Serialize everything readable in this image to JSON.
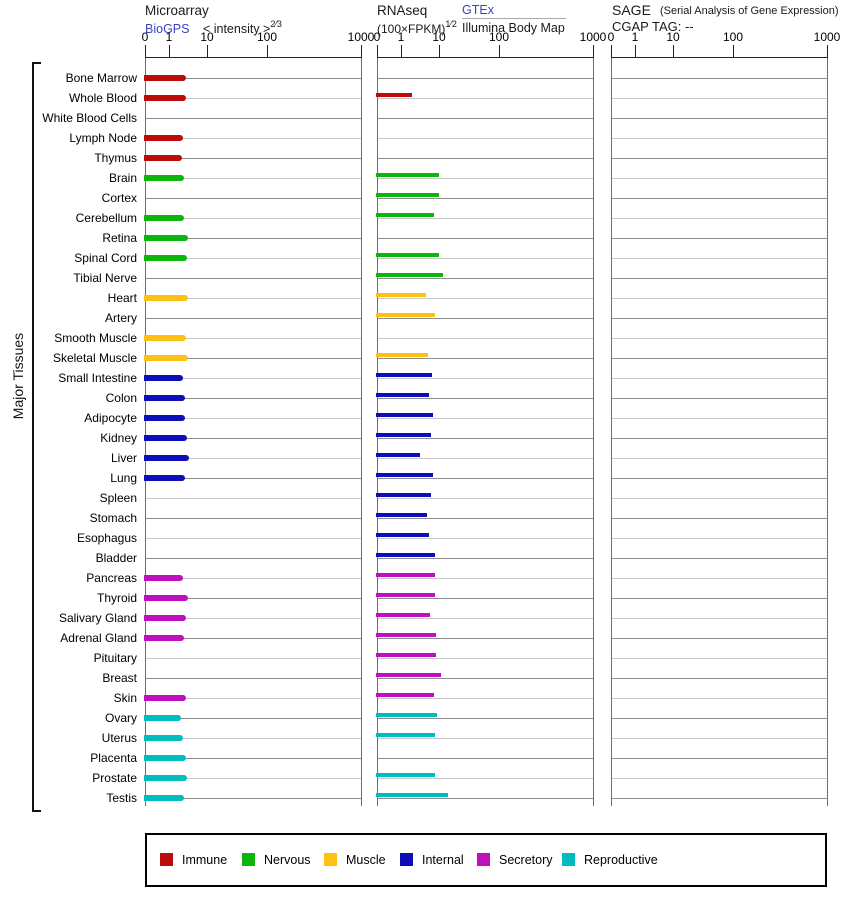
{
  "header": {
    "microarray_title": "Microarray",
    "microarray_link": "BioGPS",
    "microarray_scale": "< intensity >",
    "microarray_exponent": "2⁄3",
    "rnaseq_title": "RNAseq",
    "rnaseq_scale": "(100×FPKM)",
    "rnaseq_exponent": "1⁄2",
    "rnaseq_link": "GTEx",
    "rnaseq_source2": "Illumina Body Map",
    "sage_title": "SAGE",
    "sage_note": "(Serial Analysis of Gene Expression)",
    "sage_tag_line": "CGAP TAG: --"
  },
  "chart_data": {
    "type": "bar",
    "orientation": "horizontal",
    "axis_label_left": "Major Tissues",
    "scale_note": "power-transformed axis; ticks at 0,1,10,100,1000",
    "axis_anchors": {
      "values": [
        0,
        1,
        10,
        100,
        1000
      ],
      "offsets": [
        0,
        24,
        62,
        122,
        216
      ]
    },
    "panels": [
      {
        "key": "microarray",
        "ticks": [
          "0",
          "1",
          "10",
          "100",
          "1000"
        ]
      },
      {
        "key": "rnaseq",
        "ticks": [
          "0",
          "1",
          "10",
          "100",
          "1000"
        ]
      },
      {
        "key": "sage",
        "ticks": [
          "0",
          "1",
          "10",
          "100",
          "1000"
        ]
      }
    ],
    "group_colors": {
      "Immune": "#bb0b0b",
      "Nervous": "#0cb50c",
      "Muscle": "#fdc113",
      "Internal": "#0e0eb8",
      "Secretory": "#bf10bf",
      "Reproductive": "#00bdbd"
    },
    "legend": [
      "Immune",
      "Nervous",
      "Muscle",
      "Internal",
      "Secretory",
      "Reproductive"
    ],
    "tissues": [
      {
        "name": "Bone Marrow",
        "group": "Immune",
        "microarray": 3.0,
        "rnaseq": null,
        "sage": null
      },
      {
        "name": "Whole Blood",
        "group": "Immune",
        "microarray": 3.0,
        "rnaseq": 2.1,
        "sage": null
      },
      {
        "name": "White Blood Cells",
        "group": "Immune",
        "microarray": null,
        "rnaseq": null,
        "sage": null
      },
      {
        "name": "Lymph Node",
        "group": "Immune",
        "microarray": 2.5,
        "rnaseq": null,
        "sage": null
      },
      {
        "name": "Thymus",
        "group": "Immune",
        "microarray": 2.3,
        "rnaseq": null,
        "sage": null
      },
      {
        "name": "Brain",
        "group": "Nervous",
        "microarray": 2.6,
        "rnaseq": 10.3,
        "sage": null
      },
      {
        "name": "Cortex",
        "group": "Nervous",
        "microarray": null,
        "rnaseq": 10.3,
        "sage": null
      },
      {
        "name": "Cerebellum",
        "group": "Nervous",
        "microarray": 2.6,
        "rnaseq": 8.0,
        "sage": null
      },
      {
        "name": "Retina",
        "group": "Nervous",
        "microarray": 3.4,
        "rnaseq": null,
        "sage": null
      },
      {
        "name": "Spinal Cord",
        "group": "Nervous",
        "microarray": 3.2,
        "rnaseq": 10.3,
        "sage": null
      },
      {
        "name": "Tibial Nerve",
        "group": "Nervous",
        "microarray": null,
        "rnaseq": 12.0,
        "sage": null
      },
      {
        "name": "Heart",
        "group": "Muscle",
        "microarray": 3.4,
        "rnaseq": 4.8,
        "sage": null
      },
      {
        "name": "Artery",
        "group": "Muscle",
        "microarray": null,
        "rnaseq": 8.3,
        "sage": null
      },
      {
        "name": "Smooth Muscle",
        "group": "Muscle",
        "microarray": 3.0,
        "rnaseq": null,
        "sage": null
      },
      {
        "name": "Skeletal Muscle",
        "group": "Muscle",
        "microarray": 3.4,
        "rnaseq": 5.4,
        "sage": null
      },
      {
        "name": "Small Intestine",
        "group": "Internal",
        "microarray": 2.5,
        "rnaseq": 7.0,
        "sage": null
      },
      {
        "name": "Colon",
        "group": "Internal",
        "microarray": 2.8,
        "rnaseq": 5.7,
        "sage": null
      },
      {
        "name": "Adipocyte",
        "group": "Internal",
        "microarray": 2.8,
        "rnaseq": 7.4,
        "sage": null
      },
      {
        "name": "Kidney",
        "group": "Internal",
        "microarray": 3.2,
        "rnaseq": 6.5,
        "sage": null
      },
      {
        "name": "Liver",
        "group": "Internal",
        "microarray": 3.6,
        "rnaseq": 3.4,
        "sage": null
      },
      {
        "name": "Lung",
        "group": "Internal",
        "microarray": 2.8,
        "rnaseq": 7.4,
        "sage": null
      },
      {
        "name": "Spleen",
        "group": "Internal",
        "microarray": null,
        "rnaseq": 6.7,
        "sage": null
      },
      {
        "name": "Stomach",
        "group": "Internal",
        "microarray": null,
        "rnaseq": 5.1,
        "sage": null
      },
      {
        "name": "Esophagus",
        "group": "Internal",
        "microarray": null,
        "rnaseq": 5.9,
        "sage": null
      },
      {
        "name": "Bladder",
        "group": "Internal",
        "microarray": null,
        "rnaseq": 8.5,
        "sage": null
      },
      {
        "name": "Pancreas",
        "group": "Secretory",
        "microarray": 2.5,
        "rnaseq": 8.1,
        "sage": null
      },
      {
        "name": "Thyroid",
        "group": "Secretory",
        "microarray": 3.4,
        "rnaseq": 8.3,
        "sage": null
      },
      {
        "name": "Salivary Gland",
        "group": "Secretory",
        "microarray": 3.0,
        "rnaseq": 6.2,
        "sage": null
      },
      {
        "name": "Adrenal Gland",
        "group": "Secretory",
        "microarray": 2.6,
        "rnaseq": 8.9,
        "sage": null
      },
      {
        "name": "Pituitary",
        "group": "Secretory",
        "microarray": null,
        "rnaseq": 8.9,
        "sage": null
      },
      {
        "name": "Breast",
        "group": "Secretory",
        "microarray": null,
        "rnaseq": 11.2,
        "sage": null
      },
      {
        "name": "Skin",
        "group": "Secretory",
        "microarray": 3.0,
        "rnaseq": 8.0,
        "sage": null
      },
      {
        "name": "Ovary",
        "group": "Reproductive",
        "microarray": 2.2,
        "rnaseq": 9.4,
        "sage": null
      },
      {
        "name": "Uterus",
        "group": "Reproductive",
        "microarray": 2.5,
        "rnaseq": 8.1,
        "sage": null
      },
      {
        "name": "Placenta",
        "group": "Reproductive",
        "microarray": 3.0,
        "rnaseq": null,
        "sage": null
      },
      {
        "name": "Prostate",
        "group": "Reproductive",
        "microarray": 3.2,
        "rnaseq": 8.5,
        "sage": null
      },
      {
        "name": "Testis",
        "group": "Reproductive",
        "microarray": 2.6,
        "rnaseq": 14.5,
        "sage": null
      }
    ]
  }
}
